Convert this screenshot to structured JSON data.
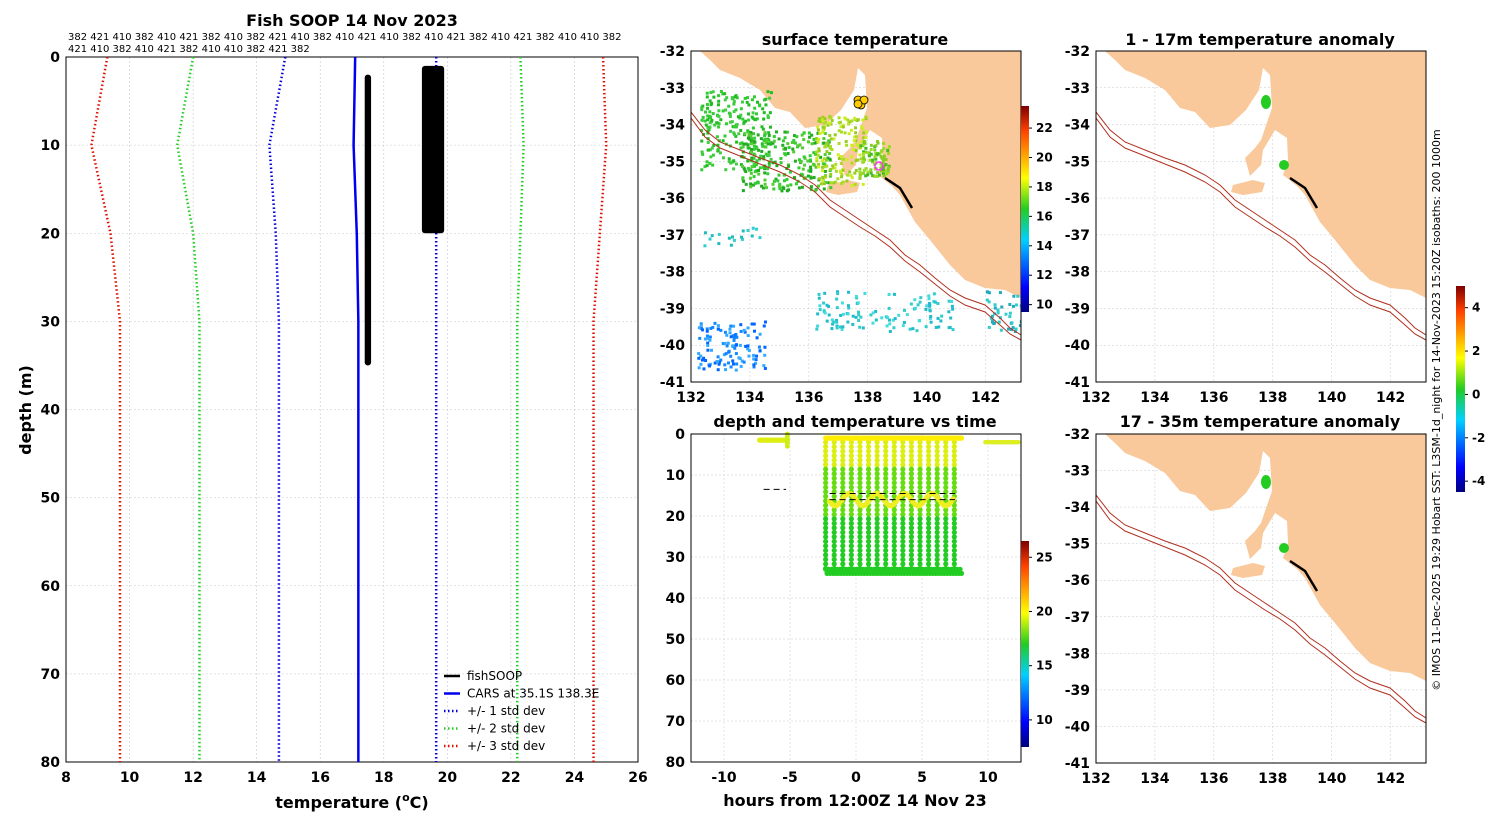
{
  "colors": {
    "land": "#f9c89b",
    "isobath": "#b03020",
    "cars": "#0000ee",
    "std1": "#0000dd",
    "std2": "#22cc22",
    "std3": "#dd1100",
    "fish": "#000000",
    "grid": "#c8c8c8"
  },
  "credit": "© IMOS 11-Dec-2025 19:29 Hobart SST: L3SM-1d_night for 14-Nov-2023 15:20Z isobaths: 200  1000m",
  "chart_data": [
    {
      "id": "profile",
      "type": "line",
      "title": "Fish SOOP 14 Nov 2023",
      "xlabel_prefix": "temperature (",
      "xlabel_sup": "o",
      "xlabel_suffix": "C)",
      "ylabel": "depth (m)",
      "xlim": [
        8,
        26
      ],
      "ylim": [
        80,
        0
      ],
      "xticks": [
        8,
        10,
        12,
        14,
        16,
        18,
        20,
        22,
        24,
        26
      ],
      "yticks": [
        0,
        10,
        20,
        30,
        40,
        50,
        60,
        70,
        80
      ],
      "grid": true,
      "legend_position": "bottom-right",
      "vessel_ids_line1": "382 421 410 382 410 421 382 410 382 421 410 382 410 421 410 382 410 421 382 410 421 382 410 410 382",
      "vessel_ids_line2": "421 410 382 410 421 382 410 410 382 421 382",
      "series": [
        {
          "name": "CARS at 35.1S 138.3E",
          "style": "solid",
          "color_key": "cars",
          "points": [
            [
              17.1,
              0
            ],
            [
              17.05,
              10
            ],
            [
              17.15,
              20
            ],
            [
              17.2,
              30
            ],
            [
              17.2,
              40
            ],
            [
              17.2,
              50
            ],
            [
              17.2,
              60
            ],
            [
              17.2,
              70
            ],
            [
              17.2,
              80
            ]
          ]
        },
        {
          "name": "+/- 1 std dev",
          "style": "dotted",
          "color_key": "std1",
          "points": [
            [
              14.9,
              0
            ],
            [
              14.4,
              10
            ],
            [
              14.6,
              20
            ],
            [
              14.7,
              30
            ],
            [
              14.7,
              40
            ],
            [
              14.7,
              50
            ],
            [
              14.7,
              60
            ],
            [
              14.7,
              70
            ],
            [
              14.7,
              80
            ]
          ]
        },
        {
          "name": "",
          "style": "dotted",
          "color_key": "std1",
          "points": [
            [
              19.65,
              0
            ],
            [
              19.65,
              10
            ],
            [
              19.65,
              20
            ],
            [
              19.65,
              30
            ],
            [
              19.65,
              40
            ],
            [
              19.65,
              50
            ],
            [
              19.65,
              60
            ],
            [
              19.65,
              70
            ],
            [
              19.65,
              80
            ]
          ]
        },
        {
          "name": "+/- 2 std dev",
          "style": "dotted",
          "color_key": "std2",
          "points": [
            [
              12.0,
              0
            ],
            [
              11.5,
              10
            ],
            [
              12.0,
              20
            ],
            [
              12.2,
              30
            ],
            [
              12.2,
              40
            ],
            [
              12.2,
              50
            ],
            [
              12.2,
              60
            ],
            [
              12.2,
              70
            ],
            [
              12.2,
              80
            ]
          ]
        },
        {
          "name": "",
          "style": "dotted",
          "color_key": "std2",
          "points": [
            [
              22.3,
              0
            ],
            [
              22.4,
              10
            ],
            [
              22.3,
              20
            ],
            [
              22.2,
              30
            ],
            [
              22.2,
              40
            ],
            [
              22.2,
              50
            ],
            [
              22.2,
              60
            ],
            [
              22.2,
              70
            ],
            [
              22.2,
              80
            ]
          ]
        },
        {
          "name": "+/- 3 std dev",
          "style": "dotted",
          "color_key": "std3",
          "points": [
            [
              9.3,
              0
            ],
            [
              8.8,
              10
            ],
            [
              9.4,
              20
            ],
            [
              9.7,
              30
            ],
            [
              9.7,
              40
            ],
            [
              9.7,
              50
            ],
            [
              9.7,
              60
            ],
            [
              9.7,
              70
            ],
            [
              9.7,
              80
            ]
          ]
        },
        {
          "name": "",
          "style": "dotted",
          "color_key": "std3",
          "points": [
            [
              24.9,
              0
            ],
            [
              25.0,
              10
            ],
            [
              24.8,
              20
            ],
            [
              24.6,
              30
            ],
            [
              24.6,
              40
            ],
            [
              24.6,
              50
            ],
            [
              24.6,
              60
            ],
            [
              24.6,
              70
            ],
            [
              24.6,
              80
            ]
          ]
        }
      ],
      "fish_name": "fishSOOP",
      "fish_blocks": [
        {
          "t0": 17.4,
          "t1": 17.6,
          "d0": 2,
          "d1": 35
        },
        {
          "t0": 19.2,
          "t1": 19.9,
          "d0": 1,
          "d1": 20
        }
      ]
    },
    {
      "id": "surface",
      "type": "heatmap",
      "title": "surface temperature",
      "xticks": [
        132,
        134,
        136,
        138,
        140,
        142
      ],
      "yticks": [
        -32,
        -33,
        -34,
        -35,
        -36,
        -37,
        -38,
        -39,
        -40,
        -41
      ],
      "xlim": [
        132,
        143.2
      ],
      "ylim": [
        -41,
        -32
      ],
      "colorbar_ticks": [
        10,
        12,
        14,
        16,
        18,
        20,
        22
      ],
      "colorbar_range": [
        9.5,
        23.5
      ]
    },
    {
      "id": "depthtime",
      "type": "scatter",
      "title": "depth and temperature vs time",
      "xlabel": "hours from 12:00Z 14 Nov 23",
      "xticks": [
        -10,
        -5,
        0,
        5,
        10
      ],
      "yticks": [
        0,
        10,
        20,
        30,
        40,
        50,
        60,
        70,
        80
      ],
      "xlim": [
        -12.5,
        12.5
      ],
      "ylim": [
        80,
        0
      ],
      "colorbar_ticks": [
        10,
        15,
        20,
        25
      ],
      "colorbar_range": [
        7.5,
        26.5
      ],
      "dives_start": -2.3,
      "dives_end": 7.7,
      "dives_step": 0.65,
      "dive_bottom_depth": 33
    },
    {
      "id": "anom1",
      "type": "heatmap",
      "title": "1 - 17m temperature anomaly",
      "xticks": [
        132,
        134,
        136,
        138,
        140,
        142
      ],
      "yticks": [
        -32,
        -33,
        -34,
        -35,
        -36,
        -37,
        -38,
        -39,
        -40,
        -41
      ],
      "xlim": [
        132,
        143.2
      ],
      "ylim": [
        -41,
        -32
      ],
      "colorbar_ticks": [
        4,
        2,
        0,
        -2,
        -4
      ],
      "colorbar_range": [
        -4.5,
        5
      ]
    },
    {
      "id": "anom2",
      "type": "heatmap",
      "title": "17 - 35m temperature anomaly",
      "xticks": [
        132,
        134,
        136,
        138,
        140,
        142
      ],
      "yticks": [
        -32,
        -33,
        -34,
        -35,
        -36,
        -37,
        -38,
        -39,
        -40,
        -41
      ],
      "xlim": [
        132,
        143.2
      ],
      "ylim": [
        -41,
        -32
      ]
    }
  ]
}
